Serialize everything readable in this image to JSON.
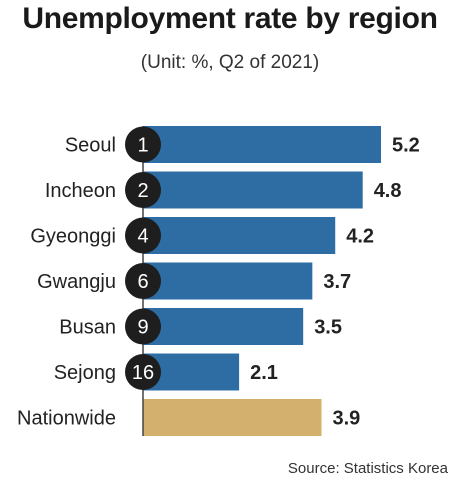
{
  "colors": {
    "bar": "#2e6da4",
    "nationwide_bar": "#d3b06e",
    "rank_circle": "#1e1e1e",
    "rank_text": "#ffffff",
    "axis": "#444444"
  },
  "title": "Unemployment rate by region",
  "subtitle": "(Unit: %, Q2 of 2021)",
  "source": "Source: Statistics Korea",
  "chart_data": {
    "type": "bar",
    "orientation": "horizontal",
    "title": "Unemployment rate by region",
    "subtitle": "(Unit: %, Q2 of 2021)",
    "categories": [
      "Seoul",
      "Incheon",
      "Gyeonggi",
      "Gwangju",
      "Busan",
      "Sejong",
      "Nationwide"
    ],
    "values": [
      5.2,
      4.8,
      4.2,
      3.7,
      3.5,
      2.1,
      3.9
    ],
    "value_labels": [
      "5.2",
      "4.8",
      "4.2",
      "3.7",
      "3.5",
      "2.1",
      "3.9"
    ],
    "ranks": [
      "1",
      "2",
      "4",
      "6",
      "9",
      "16",
      null
    ],
    "highlight_category": "Nationwide",
    "xlim": [
      0,
      5.2
    ],
    "grid": false,
    "legend": "none"
  }
}
